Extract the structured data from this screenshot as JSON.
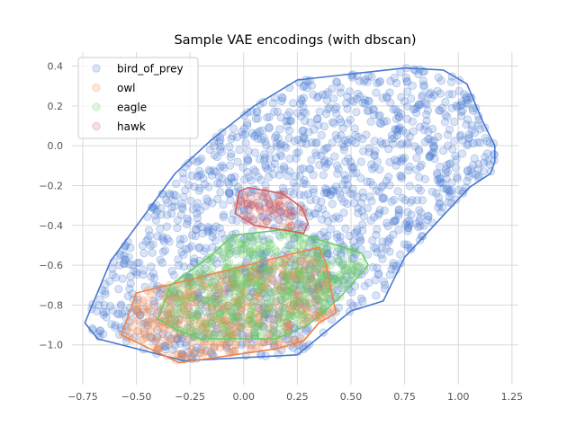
{
  "chart_data": {
    "type": "scatter",
    "title": "Sample VAE encodings (with dbscan)",
    "xlabel": "",
    "ylabel": "",
    "xlim": [
      -0.8,
      1.28
    ],
    "ylim": [
      -1.2,
      0.47
    ],
    "grid": true,
    "legend_position": "top-left",
    "x_ticks": [
      -0.75,
      -0.5,
      -0.25,
      0.0,
      0.25,
      0.5,
      0.75,
      1.0,
      1.25
    ],
    "x_tick_labels": [
      "−0.75",
      "−0.50",
      "−0.25",
      "0.00",
      "0.25",
      "0.50",
      "0.75",
      "1.00",
      "1.25"
    ],
    "y_ticks": [
      0.4,
      0.2,
      0.0,
      -0.2,
      -0.4,
      -0.6,
      -0.8,
      -1.0
    ],
    "y_tick_labels": [
      "0.4",
      "0.2",
      "0.0",
      "−0.2",
      "−0.4",
      "−0.6",
      "−0.8",
      "−1.0"
    ],
    "series": [
      {
        "name": "bird_of_prey",
        "color": "#4878d0",
        "point_count": 1500,
        "hull": [
          [
            -0.74,
            -0.89
          ],
          [
            -0.68,
            -0.97
          ],
          [
            -0.28,
            -1.08
          ],
          [
            0.25,
            -1.05
          ],
          [
            0.5,
            -0.83
          ],
          [
            0.65,
            -0.78
          ],
          [
            0.75,
            -0.56
          ],
          [
            1.05,
            -0.21
          ],
          [
            1.15,
            -0.14
          ],
          [
            1.17,
            -0.08
          ],
          [
            1.17,
            0.0
          ],
          [
            1.11,
            0.13
          ],
          [
            1.04,
            0.31
          ],
          [
            0.93,
            0.38
          ],
          [
            0.75,
            0.39
          ],
          [
            0.25,
            0.33
          ],
          [
            0.05,
            0.2
          ],
          [
            -0.15,
            0.03
          ],
          [
            -0.32,
            -0.14
          ],
          [
            -0.62,
            -0.58
          ]
        ]
      },
      {
        "name": "owl",
        "color": "#ee854a",
        "point_count": 500,
        "hull": [
          [
            -0.57,
            -0.95
          ],
          [
            -0.3,
            -1.09
          ],
          [
            0.15,
            -1.02
          ],
          [
            0.28,
            -0.98
          ],
          [
            0.35,
            -0.89
          ],
          [
            0.43,
            -0.84
          ],
          [
            0.38,
            -0.58
          ],
          [
            0.35,
            -0.51
          ],
          [
            -0.5,
            -0.74
          ]
        ]
      },
      {
        "name": "eagle",
        "color": "#6acc64",
        "point_count": 500,
        "hull": [
          [
            -0.4,
            -0.87
          ],
          [
            -0.3,
            -0.93
          ],
          [
            -0.2,
            -0.97
          ],
          [
            0.15,
            -0.97
          ],
          [
            0.3,
            -0.9
          ],
          [
            0.45,
            -0.76
          ],
          [
            0.58,
            -0.6
          ],
          [
            0.55,
            -0.54
          ],
          [
            0.2,
            -0.42
          ],
          [
            -0.05,
            -0.45
          ],
          [
            -0.15,
            -0.55
          ],
          [
            -0.34,
            -0.7
          ]
        ]
      },
      {
        "name": "hawk",
        "color": "#d65f5f",
        "point_count": 70,
        "hull": [
          [
            -0.04,
            -0.34
          ],
          [
            -0.02,
            -0.23
          ],
          [
            0.02,
            -0.21
          ],
          [
            0.18,
            -0.24
          ],
          [
            0.27,
            -0.31
          ],
          [
            0.3,
            -0.39
          ],
          [
            0.28,
            -0.44
          ],
          [
            0.05,
            -0.4
          ]
        ]
      }
    ]
  }
}
